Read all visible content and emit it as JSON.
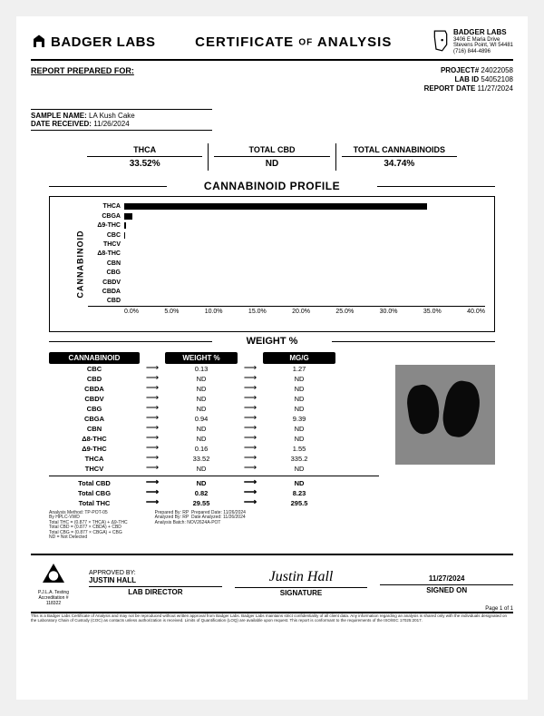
{
  "header": {
    "brand": "BADGER LABS",
    "title_l": "CERTIFICATE",
    "title_of": "OF",
    "title_r": "ANALYSIS",
    "company": {
      "name": "BADGER LABS",
      "addr1": "3406 E Maria Drive",
      "addr2": "Stevens Point, WI 54481",
      "phone": "(716) 844-4896"
    }
  },
  "meta": {
    "prepared_for_label": "REPORT PREPARED FOR:",
    "project_label": "PROJECT#",
    "project": "24022058",
    "lab_id_label": "LAB ID",
    "lab_id": "54052108",
    "report_date_label": "REPORT DATE",
    "report_date": "11/27/2024",
    "sample_name_label": "SAMPLE NAME:",
    "sample_name": "LA Kush Cake",
    "date_received_label": "DATE RECEIVED:",
    "date_received": "11/26/2024"
  },
  "summary": [
    {
      "label": "THCA",
      "value": "33.52%"
    },
    {
      "label": "TOTAL CBD",
      "value": "ND"
    },
    {
      "label": "TOTAL CANNABINOIDS",
      "value": "34.74%"
    }
  ],
  "chart": {
    "title": "CANNABINOID PROFILE",
    "ylabel": "CANNABINOID",
    "xlabel": "WEIGHT %",
    "xmax": 40.0,
    "xticks": [
      "0.0%",
      "5.0%",
      "10.0%",
      "15.0%",
      "20.0%",
      "25.0%",
      "30.0%",
      "35.0%",
      "40.0%"
    ],
    "bars": [
      {
        "label": "THCA",
        "value": 33.52,
        "color": "#000"
      },
      {
        "label": "CBGA",
        "value": 0.94,
        "color": "#000"
      },
      {
        "label": "Δ9-THC",
        "value": 0.16,
        "color": "#000"
      },
      {
        "label": "CBC",
        "value": 0.13,
        "color": "#000"
      },
      {
        "label": "THCV",
        "value": 0,
        "color": "#000"
      },
      {
        "label": "Δ8-THC",
        "value": 0,
        "color": "#000"
      },
      {
        "label": "CBN",
        "value": 0,
        "color": "#000"
      },
      {
        "label": "CBG",
        "value": 0,
        "color": "#000"
      },
      {
        "label": "CBDV",
        "value": 0,
        "color": "#000"
      },
      {
        "label": "CBDA",
        "value": 0,
        "color": "#000"
      },
      {
        "label": "CBD",
        "value": 0,
        "color": "#000"
      }
    ]
  },
  "table": {
    "headers": {
      "c": "CANNABINOID",
      "w": "WEIGHT %",
      "m": "MG/G"
    },
    "rows": [
      {
        "c": "CBC",
        "w": "0.13",
        "m": "1.27"
      },
      {
        "c": "CBD",
        "w": "ND",
        "m": "ND"
      },
      {
        "c": "CBDA",
        "w": "ND",
        "m": "ND"
      },
      {
        "c": "CBDV",
        "w": "ND",
        "m": "ND"
      },
      {
        "c": "CBG",
        "w": "ND",
        "m": "ND"
      },
      {
        "c": "CBGA",
        "w": "0.94",
        "m": "9.39"
      },
      {
        "c": "CBN",
        "w": "ND",
        "m": "ND"
      },
      {
        "c": "Δ8-THC",
        "w": "ND",
        "m": "ND"
      },
      {
        "c": "Δ9-THC",
        "w": "0.16",
        "m": "1.55"
      },
      {
        "c": "THCA",
        "w": "33.52",
        "m": "335.2"
      },
      {
        "c": "THCV",
        "w": "ND",
        "m": "ND"
      }
    ],
    "totals": [
      {
        "c": "Total CBD",
        "w": "ND",
        "m": "ND"
      },
      {
        "c": "Total CBG",
        "w": "0.82",
        "m": "8.23"
      },
      {
        "c": "Total THC",
        "w": "29.55",
        "m": "295.5"
      }
    ]
  },
  "notes": {
    "l1": "Analysis Method: TP-POT-05",
    "l2": "By HPLC-VWD",
    "l3": "Total THC = (0.877 × THCA) + Δ9-THC",
    "l4": "Total CBD = (0.877 × CBDA) + CBD",
    "l5": "Total CBG = (0.877 × CBGA) + CBG",
    "l6": "ND = Not Detected",
    "r1l": "Prepared By:",
    "r1v": "RP",
    "r1l2": "Prepared Date:",
    "r1v2": "11/26/2024",
    "r2l": "Analyzed By:",
    "r2v": "RP",
    "r2l2": "Date Analyzed:",
    "r2v2": "11/26/2024",
    "r3l": "Analysis Batch:",
    "r3v": "NOV2624A-POT"
  },
  "footer": {
    "accred": "P.J.L.A. Testing Accreditation # 118322",
    "approved_label": "APPROVED BY:",
    "approved_name": "JUSTIN HALL",
    "approved_title": "LAB DIRECTOR",
    "signature": "Justin Hall",
    "signature_label": "SIGNATURE",
    "signed_date": "11/27/2024",
    "signed_label": "SIGNED ON",
    "page": "Page 1 of 1",
    "disclaimer": "This is a Badger Labs Certificate of Analysis and may not be reproduced without written approval from Badger Labs. Badger Labs maintains strict confidentiality of all client data. Any information regarding an analysis is shared only with the individuals designated on the Laboratory Chain of Custody (COC) as contacts unless authorization is received. Limits of Quantification (LOQ) are available upon request. This report is conformant to the requirements of the ISO/IEC 17025:2017."
  }
}
